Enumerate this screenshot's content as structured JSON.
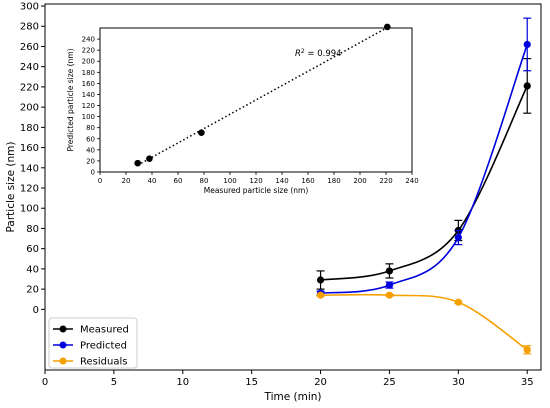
{
  "chart_data": [
    {
      "type": "line",
      "xlabel": "Time (min)",
      "ylabel": "Particle size (nm)",
      "xlim": [
        0,
        36
      ],
      "ylim": [
        -60,
        302
      ],
      "x_ticks": [
        0,
        5,
        10,
        15,
        20,
        25,
        30,
        35
      ],
      "y_ticks": [
        0,
        20,
        40,
        60,
        80,
        100,
        120,
        140,
        160,
        180,
        200,
        220,
        240,
        260,
        280,
        300
      ],
      "grid": false,
      "legend_position": "bottom-left",
      "x": [
        20,
        25,
        30,
        35
      ],
      "series": [
        {
          "name": "Measured",
          "color": "#000000",
          "values": [
            29,
            38,
            78,
            221
          ],
          "errors": [
            9,
            7,
            10,
            27
          ]
        },
        {
          "name": "Predicted",
          "color": "#0000dd",
          "values": [
            16,
            24,
            71,
            262
          ],
          "errors": [
            2,
            3,
            7,
            26
          ]
        },
        {
          "name": "Residuals",
          "color": "#f5a000",
          "values": [
            14,
            14,
            7,
            -40
          ],
          "errors": [
            1,
            1,
            1,
            4
          ]
        }
      ]
    },
    {
      "type": "scatter",
      "xlabel": "Measured particle size (nm)",
      "ylabel": "Predicted particle size (nm)",
      "xlim": [
        0,
        240
      ],
      "ylim": [
        0,
        260
      ],
      "x_ticks": [
        0,
        20,
        40,
        60,
        80,
        100,
        120,
        140,
        160,
        180,
        200,
        220,
        240
      ],
      "y_ticks": [
        0,
        20,
        40,
        60,
        80,
        100,
        120,
        140,
        160,
        180,
        200,
        220,
        240
      ],
      "annotation_prefix": "R",
      "annotation_sup": "2",
      "annotation_value": " = 0.994",
      "trendline": "dotted",
      "points": [
        {
          "x": 29,
          "y": 16
        },
        {
          "x": 38,
          "y": 24
        },
        {
          "x": 78,
          "y": 71
        },
        {
          "x": 221,
          "y": 262
        }
      ]
    }
  ]
}
